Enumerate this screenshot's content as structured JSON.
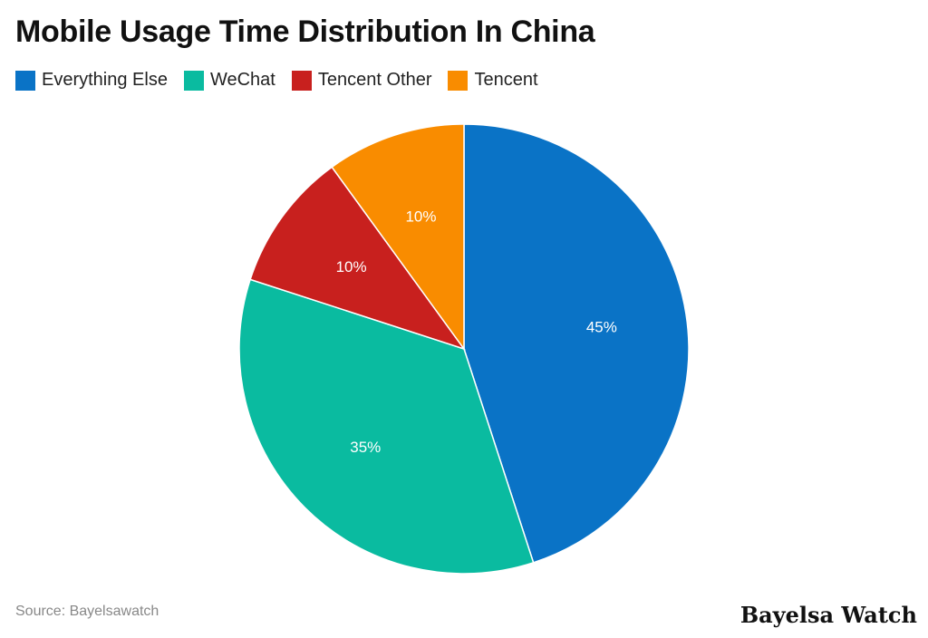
{
  "chart_data": {
    "type": "pie",
    "title": "Mobile Usage Time Distribution In China",
    "categories": [
      "Everything Else",
      "WeChat",
      "Tencent Other",
      "Tencent"
    ],
    "values": [
      45,
      35,
      10,
      10
    ],
    "labels": [
      "45%",
      "35%",
      "10%",
      "10%"
    ],
    "colors": [
      "#0a73c6",
      "#0abba0",
      "#c8201e",
      "#f98c00"
    ],
    "legend_position": "top-left"
  },
  "footer": {
    "source": "Source: Bayelsawatch",
    "brand": "Bayelsa Watch"
  }
}
